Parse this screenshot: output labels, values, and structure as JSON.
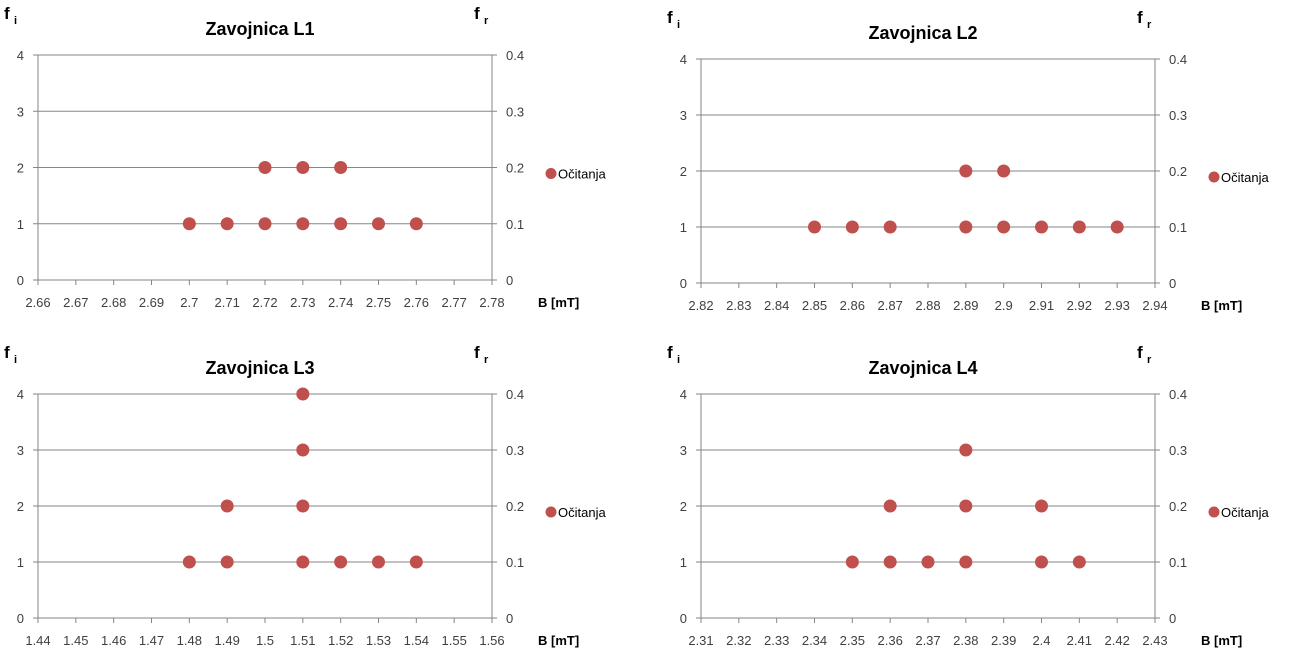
{
  "chart_data": [
    {
      "type": "scatter",
      "title": "Zavojnica L1",
      "y_left_label": {
        "main": "f",
        "sub": "i"
      },
      "y_right_label": {
        "main": "f",
        "sub": "r"
      },
      "xlabel": "B [mT]",
      "xticks": [
        "2.66",
        "2.67",
        "2.68",
        "2.69",
        "2.7",
        "2.71",
        "2.72",
        "2.73",
        "2.74",
        "2.75",
        "2.76",
        "2.77",
        "2.78"
      ],
      "xlim": [
        2.66,
        2.78
      ],
      "yticks_left": [
        "0",
        "1",
        "2",
        "3",
        "4"
      ],
      "yticks_right": [
        "0",
        "0.1",
        "0.2",
        "0.3",
        "0.4"
      ],
      "ylim_left": [
        0,
        4
      ],
      "grid": "horizontal",
      "legend_position": "right",
      "series": [
        {
          "name": "Očitanja",
          "color": "#C0504D",
          "points": [
            [
              2.7,
              1
            ],
            [
              2.71,
              1
            ],
            [
              2.72,
              1
            ],
            [
              2.73,
              1
            ],
            [
              2.74,
              1
            ],
            [
              2.75,
              1
            ],
            [
              2.76,
              1
            ],
            [
              2.72,
              2
            ],
            [
              2.73,
              2
            ],
            [
              2.74,
              2
            ]
          ]
        }
      ]
    },
    {
      "type": "scatter",
      "title": "Zavojnica L2",
      "y_left_label": {
        "main": "f",
        "sub": "i"
      },
      "y_right_label": {
        "main": "f",
        "sub": "r"
      },
      "xlabel": "B [mT]",
      "xticks": [
        "2.82",
        "2.83",
        "2.84",
        "2.85",
        "2.86",
        "2.87",
        "2.88",
        "2.89",
        "2.9",
        "2.91",
        "2.92",
        "2.93",
        "2.94"
      ],
      "xlim": [
        2.82,
        2.94
      ],
      "yticks_left": [
        "0",
        "1",
        "2",
        "3",
        "4"
      ],
      "yticks_right": [
        "0",
        "0.1",
        "0.2",
        "0.3",
        "0.4"
      ],
      "ylim_left": [
        0,
        4
      ],
      "grid": "horizontal",
      "legend_position": "right",
      "series": [
        {
          "name": "Očitanja",
          "color": "#C0504D",
          "points": [
            [
              2.85,
              1
            ],
            [
              2.86,
              1
            ],
            [
              2.87,
              1
            ],
            [
              2.89,
              1
            ],
            [
              2.9,
              1
            ],
            [
              2.91,
              1
            ],
            [
              2.92,
              1
            ],
            [
              2.93,
              1
            ],
            [
              2.89,
              2
            ],
            [
              2.9,
              2
            ]
          ]
        }
      ]
    },
    {
      "type": "scatter",
      "title": "Zavojnica L3",
      "y_left_label": {
        "main": "f",
        "sub": "i"
      },
      "y_right_label": {
        "main": "f",
        "sub": "r"
      },
      "xlabel": "B [mT]",
      "xticks": [
        "1.44",
        "1.45",
        "1.46",
        "1.47",
        "1.48",
        "1.49",
        "1.5",
        "1.51",
        "1.52",
        "1.53",
        "1.54",
        "1.55",
        "1.56"
      ],
      "xlim": [
        1.44,
        1.56
      ],
      "yticks_left": [
        "0",
        "1",
        "2",
        "3",
        "4"
      ],
      "yticks_right": [
        "0",
        "0.1",
        "0.2",
        "0.3",
        "0.4"
      ],
      "ylim_left": [
        0,
        4
      ],
      "grid": "horizontal",
      "legend_position": "right",
      "series": [
        {
          "name": "Očitanja",
          "color": "#C0504D",
          "points": [
            [
              1.48,
              1
            ],
            [
              1.49,
              1
            ],
            [
              1.51,
              1
            ],
            [
              1.52,
              1
            ],
            [
              1.53,
              1
            ],
            [
              1.54,
              1
            ],
            [
              1.49,
              2
            ],
            [
              1.51,
              2
            ],
            [
              1.51,
              3
            ],
            [
              1.51,
              4
            ]
          ]
        }
      ]
    },
    {
      "type": "scatter",
      "title": "Zavojnica L4",
      "y_left_label": {
        "main": "f",
        "sub": "i"
      },
      "y_right_label": {
        "main": "f",
        "sub": "r"
      },
      "xlabel": "B [mT]",
      "xticks": [
        "2.31",
        "2.32",
        "2.33",
        "2.34",
        "2.35",
        "2.36",
        "2.37",
        "2.38",
        "2.39",
        "2.4",
        "2.41",
        "2.42",
        "2.43"
      ],
      "xlim": [
        2.31,
        2.43
      ],
      "yticks_left": [
        "0",
        "1",
        "2",
        "3",
        "4"
      ],
      "yticks_right": [
        "0",
        "0.1",
        "0.2",
        "0.3",
        "0.4"
      ],
      "ylim_left": [
        0,
        4
      ],
      "grid": "horizontal",
      "legend_position": "right",
      "series": [
        {
          "name": "Očitanja",
          "color": "#C0504D",
          "points": [
            [
              2.35,
              1
            ],
            [
              2.36,
              1
            ],
            [
              2.37,
              1
            ],
            [
              2.38,
              1
            ],
            [
              2.4,
              1
            ],
            [
              2.41,
              1
            ],
            [
              2.36,
              2
            ],
            [
              2.38,
              2
            ],
            [
              2.4,
              2
            ],
            [
              2.38,
              3
            ]
          ]
        }
      ]
    }
  ]
}
